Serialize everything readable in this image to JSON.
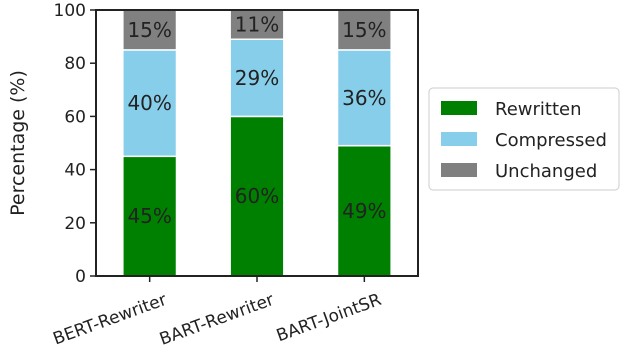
{
  "chart_data": {
    "type": "bar",
    "stacked": true,
    "categories": [
      "BERT-Rewriter",
      "BART-Rewriter",
      "BART-JointSR"
    ],
    "series": [
      {
        "name": "Rewritten",
        "values": [
          45,
          60,
          49
        ],
        "color": "#008000",
        "labels": [
          "45%",
          "60%",
          "49%"
        ]
      },
      {
        "name": "Compressed",
        "values": [
          40,
          29,
          36
        ],
        "color": "#87ceeb",
        "labels": [
          "40%",
          "29%",
          "36%"
        ]
      },
      {
        "name": "Unchanged",
        "values": [
          15,
          11,
          15
        ],
        "color": "#808080",
        "labels": [
          "15%",
          "11%",
          "15%"
        ]
      }
    ],
    "ylabel": "Percentage (%)",
    "xlabel": "",
    "ylim": [
      0,
      100
    ],
    "yticks": [
      0,
      20,
      40,
      60,
      80,
      100
    ],
    "legend_position": "right",
    "grid": false
  }
}
